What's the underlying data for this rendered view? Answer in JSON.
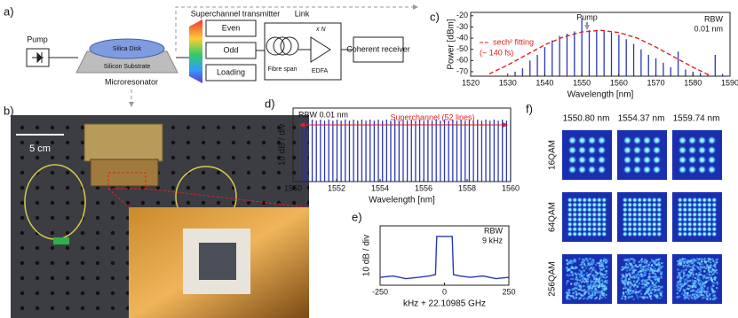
{
  "figure": {
    "panel_labels": [
      "a)",
      "b)",
      "c)",
      "d)",
      "e)",
      "f)"
    ]
  },
  "schematic": {
    "pump": "Pump",
    "disk": "Silica Disk",
    "substrate": "Silicon Substrate",
    "microresonator": "Microresonator",
    "transmitter": "Superchannel transmitter",
    "blocks": [
      "Even",
      "Odd",
      "Loading"
    ],
    "link": "Link",
    "fibre": "Fibre span",
    "span_count": "x N",
    "amplifier": "EDFA",
    "receiver": "Coherent receiver"
  },
  "photo": {
    "scale": "5 cm"
  },
  "chart_data": [
    {
      "type": "line",
      "xlabel": "Wavelength [nm]",
      "ylabel": "Power [dBm]",
      "xlim": [
        1520,
        1590
      ],
      "xticks": [
        1520,
        1530,
        1540,
        1550,
        1560,
        1570,
        1580,
        1590
      ],
      "ylim": [
        -74,
        -17
      ],
      "yticks": [
        -70,
        -60,
        -50,
        -40,
        -30,
        -20
      ],
      "annotations": [
        "Pump",
        "RBW",
        "0.01 nm",
        "(~ 140 fs)"
      ],
      "x": [
        1532,
        1534,
        1536,
        1538,
        1540,
        1542,
        1544,
        1546,
        1548,
        1550,
        1552,
        1554,
        1556,
        1558,
        1560,
        1562,
        1564,
        1566,
        1568,
        1570,
        1572,
        1574,
        1576,
        1578,
        1580,
        1582,
        1584,
        1586,
        1588
      ],
      "series": [
        {
          "style": "stem",
          "color": "#2a36b8",
          "values": [
            -70,
            -67,
            -60,
            -55,
            -48,
            -42,
            -38,
            -36,
            -34,
            -22,
            -33,
            -33,
            -34,
            -35,
            -37,
            -41,
            -45,
            -50,
            -55,
            -58,
            -62,
            -66,
            -52,
            -68,
            -70,
            -71,
            -72,
            -55,
            -72
          ]
        },
        {
          "name": "sech² fitting",
          "style": "dashed",
          "color": "#e02020",
          "x": [
            1525,
            1530,
            1535,
            1540,
            1545,
            1550,
            1555,
            1560,
            1565,
            1570,
            1575,
            1580,
            1585
          ],
          "values": [
            -72,
            -64,
            -55,
            -46,
            -39,
            -34.5,
            -33,
            -35,
            -40,
            -48,
            -57,
            -66,
            -74
          ]
        }
      ]
    },
    {
      "type": "line",
      "xlabel": "Wavelength [nm]",
      "ylabel": "10 dB / div",
      "xlim": [
        1550,
        1560
      ],
      "xticks": [
        1550,
        1552,
        1554,
        1556,
        1558,
        1560
      ],
      "ylim": [
        0,
        7
      ],
      "annotations": [
        "RBW 0.01 nm",
        "Superchannel (52 lines)"
      ],
      "x": [
        1550.31,
        1550.5,
        1550.69,
        1550.88,
        1551.07,
        1551.26,
        1551.45,
        1551.64,
        1551.83,
        1552.02,
        1552.21,
        1552.4,
        1552.59,
        1552.78,
        1552.97,
        1553.16,
        1553.35,
        1553.54,
        1553.73,
        1553.92,
        1554.11,
        1554.3,
        1554.49,
        1554.68,
        1554.87,
        1555.06,
        1555.25,
        1555.44,
        1555.63,
        1555.82,
        1556.01,
        1556.2,
        1556.39,
        1556.58,
        1556.77,
        1556.96,
        1557.15,
        1557.34,
        1557.53,
        1557.72,
        1557.91,
        1558.1,
        1558.29,
        1558.48,
        1558.67,
        1558.86,
        1559.05,
        1559.24,
        1559.43,
        1559.62,
        1559.81,
        1560
      ],
      "series": [
        {
          "style": "stem",
          "color": "#2a36b8",
          "values": [
            5.8,
            5.9,
            5.8,
            5.9,
            5.8,
            5.9,
            5.8,
            5.9,
            5.8,
            5.9,
            5.8,
            5.9,
            5.8,
            5.9,
            5.8,
            5.9,
            5.8,
            5.9,
            5.8,
            5.9,
            5.8,
            5.9,
            5.8,
            5.9,
            5.8,
            5.9,
            5.8,
            5.9,
            5.8,
            5.9,
            5.8,
            5.9,
            5.8,
            5.9,
            5.8,
            5.9,
            5.8,
            5.9,
            5.8,
            5.9,
            5.8,
            5.9,
            5.8,
            5.9,
            5.8,
            5.9,
            5.8,
            5.9,
            5.8,
            5.9,
            5.8,
            5.9
          ]
        }
      ]
    },
    {
      "type": "line",
      "xlabel": "kHz + 22.10985 GHz",
      "ylabel": "10 dB / div",
      "xlim": [
        -250,
        250
      ],
      "xticks": [
        -250,
        0,
        250
      ],
      "ylim": [
        0,
        4.5
      ],
      "annotations": [
        "RBW",
        "9 kHz"
      ],
      "x": [
        -250,
        -200,
        -150,
        -100,
        -60,
        -35,
        -30,
        30,
        35,
        60,
        100,
        150,
        200,
        250
      ],
      "series": [
        {
          "style": "solid",
          "color": "#2a36b8",
          "values": [
            0.6,
            0.7,
            0.5,
            0.6,
            0.7,
            0.8,
            3.7,
            3.7,
            0.8,
            0.7,
            0.6,
            0.7,
            0.5,
            0.6
          ]
        }
      ]
    }
  ],
  "constellations": {
    "wavelengths": [
      "1550.80 nm",
      "1554.37 nm",
      "1559.74 nm"
    ],
    "formats": [
      "16QAM",
      "64QAM",
      "256QAM"
    ]
  }
}
